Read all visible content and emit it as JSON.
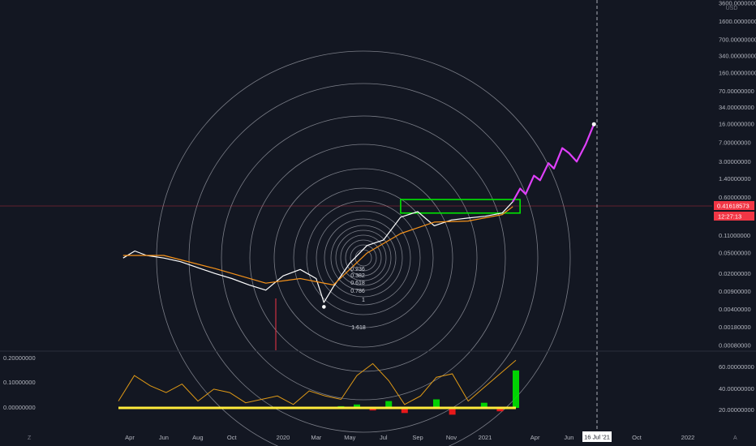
{
  "chart_data": [
    {
      "type": "line",
      "scale": "log",
      "currency": "USD",
      "x_ticks": [
        "Apr",
        "Jun",
        "Aug",
        "Oct",
        "2020",
        "Mar",
        "May",
        "Jul",
        "Sep",
        "Nov",
        "2021",
        "Apr",
        "Jun",
        "16 Jul '21",
        "Oct",
        "2022"
      ],
      "y_ticks": [
        "3600.00000000",
        "1600.00000000",
        "700.00000000",
        "340.00000000",
        "160.00000000",
        "70.00000000",
        "34.00000000",
        "16.00000000",
        "7.00000000",
        "3.00000000",
        "1.40000000",
        "0.60000000",
        "0.11000000",
        "0.05000000",
        "0.02000000",
        "0.00900000",
        "0.00400000",
        "0.00180000",
        "0.00080000"
      ],
      "y_tick_values": [
        3600,
        1600,
        700,
        340,
        160,
        70,
        34,
        16,
        7,
        3,
        1.4,
        0.6,
        0.11,
        0.05,
        0.02,
        0.009,
        0.004,
        0.0018,
        0.0008
      ],
      "ylim": [
        0.0007,
        5000
      ],
      "current_price_label": "0.41618573",
      "countdown_label": "12:27:13",
      "crosshair_date_label": "16 Jul '21",
      "grid": false,
      "series": [
        {
          "role": "price",
          "color": "#ffffff",
          "points": [
            [
              "2019-03-20",
              0.04
            ],
            [
              "2019-04-10",
              0.055
            ],
            [
              "2019-05-01",
              0.045
            ],
            [
              "2019-06-01",
              0.04
            ],
            [
              "2019-07-01",
              0.034
            ],
            [
              "2019-08-01",
              0.026
            ],
            [
              "2019-09-01",
              0.02
            ],
            [
              "2019-10-01",
              0.016
            ],
            [
              "2019-11-01",
              0.012
            ],
            [
              "2019-12-01",
              0.0095
            ],
            [
              "2020-01-01",
              0.018
            ],
            [
              "2020-02-01",
              0.024
            ],
            [
              "2020-03-01",
              0.016
            ],
            [
              "2020-03-15",
              0.0055
            ],
            [
              "2020-04-01",
              0.011
            ],
            [
              "2020-05-01",
              0.032
            ],
            [
              "2020-06-01",
              0.07
            ],
            [
              "2020-07-01",
              0.09
            ],
            [
              "2020-08-01",
              0.25
            ],
            [
              "2020-09-01",
              0.32
            ],
            [
              "2020-10-01",
              0.17
            ],
            [
              "2020-11-01",
              0.22
            ],
            [
              "2020-12-01",
              0.24
            ],
            [
              "2021-01-01",
              0.26
            ],
            [
              "2021-02-01",
              0.3
            ],
            [
              "2021-02-20",
              0.5
            ]
          ]
        },
        {
          "role": "moving-average",
          "color": "#f7931a",
          "points": [
            [
              "2019-03-20",
              0.045
            ],
            [
              "2019-06-01",
              0.045
            ],
            [
              "2019-09-01",
              0.025
            ],
            [
              "2019-12-01",
              0.013
            ],
            [
              "2020-02-01",
              0.016
            ],
            [
              "2020-04-01",
              0.012
            ],
            [
              "2020-06-01",
              0.05
            ],
            [
              "2020-08-01",
              0.12
            ],
            [
              "2020-10-01",
              0.2
            ],
            [
              "2020-12-01",
              0.21
            ],
            [
              "2021-02-01",
              0.28
            ],
            [
              "2021-02-20",
              0.4
            ]
          ]
        },
        {
          "role": "projection",
          "color": "#e040fb",
          "points": [
            [
              "2021-02-20",
              0.5
            ],
            [
              "2021-03-05",
              0.9
            ],
            [
              "2021-03-15",
              0.7
            ],
            [
              "2021-03-30",
              1.6
            ],
            [
              "2021-04-10",
              1.3
            ],
            [
              "2021-04-25",
              2.8
            ],
            [
              "2021-05-05",
              2.2
            ],
            [
              "2021-05-20",
              5.5
            ],
            [
              "2021-06-01",
              4.4
            ],
            [
              "2021-06-15",
              3.0
            ],
            [
              "2021-07-01",
              6.5
            ],
            [
              "2021-07-16",
              16
            ]
          ]
        }
      ],
      "annotations": {
        "fib_levels": [
          "0.236",
          "0.382",
          "0.618",
          "0.786",
          "1",
          "1.618"
        ],
        "resistance_box": {
          "x0": "2020-08-01",
          "x1": "2021-03-05",
          "y0": 0.3,
          "y1": 0.55,
          "color": "#00e600"
        },
        "target_point": {
          "x": "2021-07-16",
          "y": 16
        },
        "origin_point": {
          "x": "2020-03-15",
          "y": 0.0045
        }
      }
    },
    {
      "type": "area",
      "left_ticks": [
        "0.20000000",
        "0.10000000",
        "0.00000000"
      ],
      "right_ticks": [
        "60.00000000",
        "40.00000000",
        "20.00000000"
      ],
      "oscillator": [
        0.04,
        0.19,
        0.13,
        0.09,
        0.14,
        0.04,
        0.11,
        0.09,
        0.03,
        0.05,
        0.07,
        0.02,
        0.1,
        0.07,
        0.05,
        0.19,
        0.26,
        0.16,
        0.02,
        0.07,
        0.18,
        0.2,
        0.04,
        0.12,
        0.2,
        0.28
      ],
      "histogram": [
        0.0,
        0.0,
        -0.005,
        0.0,
        0.0,
        0.0,
        0.0,
        0.0,
        0.0,
        0.0,
        0.0,
        0.0,
        0.0,
        0.0,
        0.01,
        0.02,
        -0.015,
        0.04,
        -0.03,
        0.0,
        0.05,
        -0.04,
        0.0,
        0.03,
        -0.02,
        0.22
      ],
      "colors": {
        "oscillator": "#e09a16",
        "positive": "#00e600",
        "negative": "#ff1a1a",
        "baseline": "#ffeb3b"
      }
    }
  ],
  "ui": {
    "left_letter": "Z",
    "right_letter": "A"
  }
}
